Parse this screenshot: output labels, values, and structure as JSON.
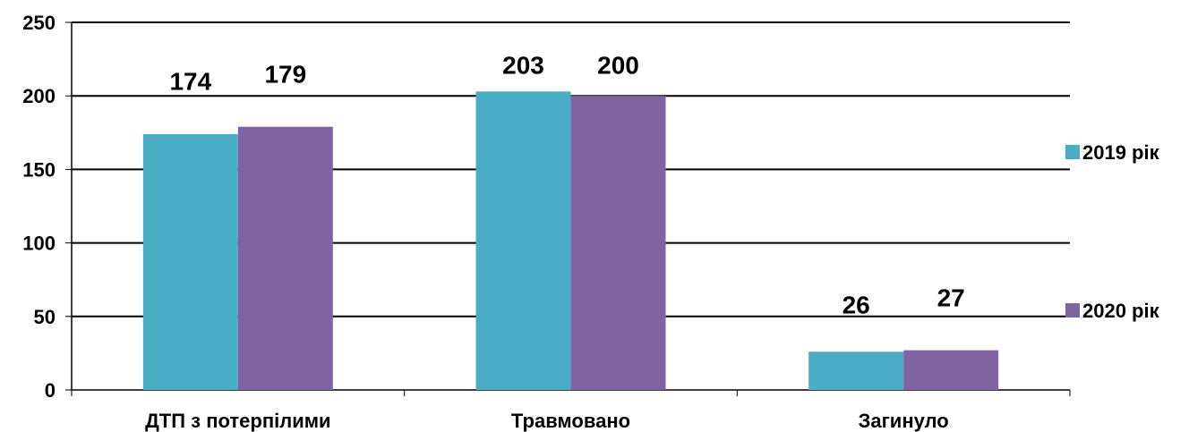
{
  "chart_data": {
    "type": "bar",
    "categories": [
      "ДТП з потерпілими",
      "Травмовано",
      "Загинуло"
    ],
    "series": [
      {
        "name": "2019 рік",
        "values": [
          174,
          203,
          26
        ],
        "color": "#4BACC6"
      },
      {
        "name": "2020 рік",
        "values": [
          179,
          200,
          27
        ],
        "color": "#8064A2"
      }
    ],
    "title": "",
    "xlabel": "",
    "ylabel": "",
    "ylim": [
      0,
      250
    ],
    "yticks": [
      0,
      50,
      100,
      150,
      200,
      250
    ],
    "grid": true,
    "legend_position": "right",
    "data_labels": true
  }
}
